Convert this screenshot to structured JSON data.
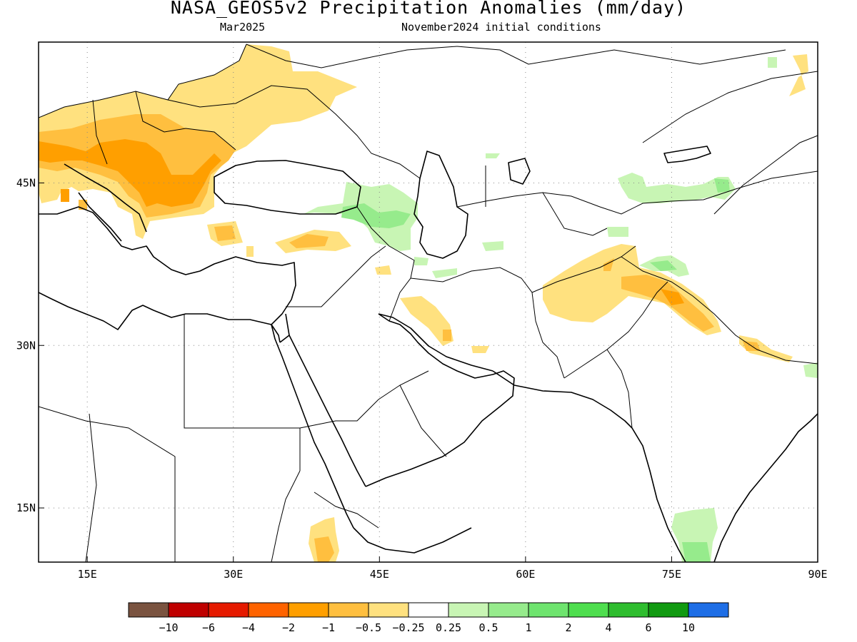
{
  "header": {
    "title": "NASA_GEOS5v2 Precipitation Anomalies (mm/day)",
    "lead_month": "Mar2025",
    "initial_conditions": "November2024 initial conditions"
  },
  "map": {
    "lon_range": [
      10,
      90
    ],
    "lat_range": [
      10,
      58
    ],
    "x_ticks": [
      {
        "lon": 15,
        "label": "15E"
      },
      {
        "lon": 30,
        "label": "30E"
      },
      {
        "lon": 45,
        "label": "45E"
      },
      {
        "lon": 60,
        "label": "60E"
      },
      {
        "lon": 75,
        "label": "75E"
      },
      {
        "lon": 90,
        "label": "90E"
      }
    ],
    "y_ticks": [
      {
        "lat": 45,
        "label": "45N"
      },
      {
        "lat": 30,
        "label": "30N"
      },
      {
        "lat": 15,
        "label": "15N"
      }
    ]
  },
  "legend": {
    "colors": [
      "#7a5340",
      "#bf0000",
      "#e51a00",
      "#ff6300",
      "#ff9f00",
      "#ffbf3f",
      "#ffe17f",
      "#ffffff",
      "#c8f5b4",
      "#96eb8c",
      "#6ee46e",
      "#4ede4e",
      "#2ebd2e",
      "#119a11",
      "#1e6ee6"
    ],
    "labels": [
      "−10",
      "−6",
      "−4",
      "−2",
      "−1",
      "−0.5",
      "−0.25",
      "0.25",
      "0.5",
      "1",
      "2",
      "4",
      "6",
      "10"
    ]
  },
  "colors": {
    "dry_light": "#ffe17f",
    "dry_medium": "#ffbf3f",
    "dry_strong": "#ff9f00",
    "wet_light": "#c8f5b4",
    "wet_medium": "#96eb8c"
  }
}
